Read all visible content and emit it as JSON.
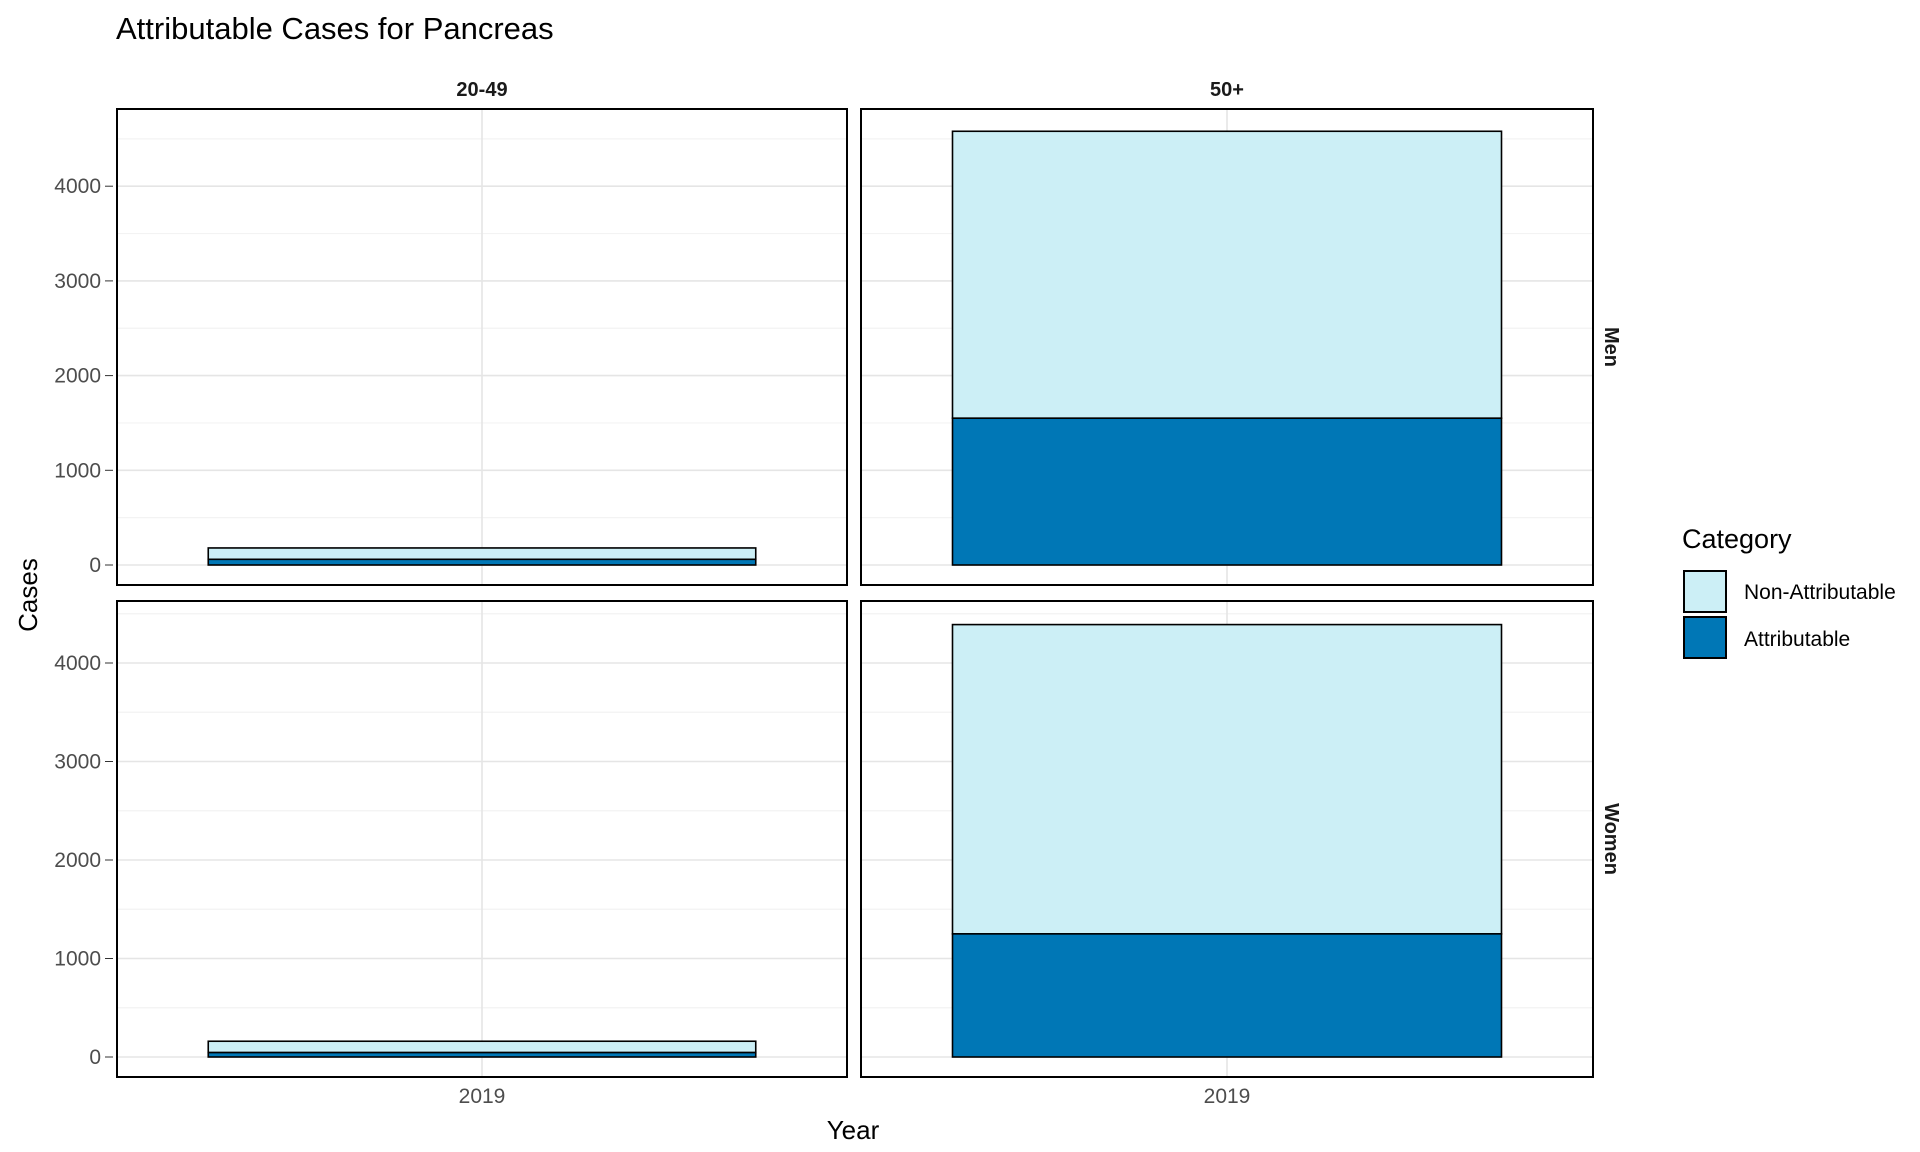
{
  "chart_data": {
    "type": "bar",
    "stacked": true,
    "title": "Attributable Cases for Pancreas",
    "xlabel": "Year",
    "ylabel": "Cases",
    "categories": [
      "2019"
    ],
    "ylim": [
      -220,
      4800
    ],
    "yticks": [
      0,
      1000,
      2000,
      3000,
      4000
    ],
    "grid": true,
    "facet_columns": [
      "20-49",
      "50+"
    ],
    "facet_rows": [
      "Men",
      "Women"
    ],
    "legend": {
      "title": "Category",
      "position": "right",
      "entries": [
        {
          "label": "Non-Attributable",
          "color": "#cceff6"
        },
        {
          "label": "Attributable",
          "color": "#0077b6"
        }
      ]
    },
    "panels": [
      {
        "row": "Men",
        "col": "20-49",
        "category": "2019",
        "attributable": 60,
        "non_attributable": 120
      },
      {
        "row": "Men",
        "col": "50+",
        "category": "2019",
        "attributable": 1550,
        "non_attributable": 3030
      },
      {
        "row": "Women",
        "col": "20-49",
        "category": "2019",
        "attributable": 45,
        "non_attributable": 115
      },
      {
        "row": "Women",
        "col": "50+",
        "category": "2019",
        "attributable": 1250,
        "non_attributable": 3140
      }
    ]
  }
}
